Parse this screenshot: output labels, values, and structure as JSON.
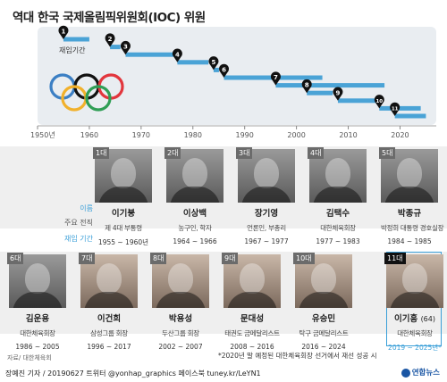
{
  "title": "역대 한국 국제올림픽위원회(IOC) 위원",
  "chart_data": {
    "type": "timeline",
    "x_ticks": [
      "1950년",
      "1960",
      "1970",
      "1980",
      "1990",
      "2000",
      "2010",
      "2020"
    ],
    "annotation": "재임기간",
    "bars": [
      {
        "marker": "1",
        "start": 1955,
        "end": 1960
      },
      {
        "marker": "2",
        "start": 1964,
        "end": 1966
      },
      {
        "marker": "3",
        "start": 1967,
        "end": 1977
      },
      {
        "marker": "4",
        "start": 1977,
        "end": 1983
      },
      {
        "marker": "5",
        "start": 1984,
        "end": 1985
      },
      {
        "marker": "6",
        "start": 1986,
        "end": 2005
      },
      {
        "marker": "7",
        "start": 1996,
        "end": 2017
      },
      {
        "marker": "8",
        "start": 2002,
        "end": 2007
      },
      {
        "marker": "9",
        "start": 2008,
        "end": 2016
      },
      {
        "marker": "10",
        "start": 2016,
        "end": 2024
      },
      {
        "marker": "11",
        "start": 2019,
        "end": 2025
      }
    ]
  },
  "row_labels": {
    "name": "이름",
    "role": "주요 전직",
    "term": "재임 기간"
  },
  "members": [
    {
      "order": "1대",
      "name": "이기붕",
      "age": "",
      "role": "제 4대 부통령",
      "term": "1955 ~ 1960년"
    },
    {
      "order": "2대",
      "name": "이상백",
      "age": "",
      "role": "농구인, 학자",
      "term": "1964 ~ 1966"
    },
    {
      "order": "3대",
      "name": "장기영",
      "age": "",
      "role": "언론인, 부총리",
      "term": "1967 ~ 1977"
    },
    {
      "order": "4대",
      "name": "김택수",
      "age": "",
      "role": "대한체육회장",
      "term": "1977 ~ 1983"
    },
    {
      "order": "5대",
      "name": "박종규",
      "age": "",
      "role": "박정희 대통령 경호실장",
      "term": "1984 ~ 1985"
    },
    {
      "order": "6대",
      "name": "김운용",
      "age": "",
      "role": "대한체육회장",
      "term": "1986 ~ 2005"
    },
    {
      "order": "7대",
      "name": "이건희",
      "age": "",
      "role": "삼성그룹 회장",
      "term": "1996 ~ 2017"
    },
    {
      "order": "8대",
      "name": "박용성",
      "age": "",
      "role": "두산그룹 회장",
      "term": "2002 ~ 2007"
    },
    {
      "order": "9대",
      "name": "문대성",
      "age": "",
      "role": "태권도 금메달리스트",
      "term": "2008 ~ 2016"
    },
    {
      "order": "10대",
      "name": "유승민",
      "age": "",
      "role": "탁구 금메달리스트",
      "term": "2016 ~ 2024"
    },
    {
      "order": "11대",
      "name": "이기흥",
      "age": "(64)",
      "role": "대한체육회장",
      "term": "2019 ~ 2025년*"
    }
  ],
  "footnote": "*2020년 말 예정된 대한체육회장 선거에서 재선 성공 시",
  "source": "자료/ 대한체육회",
  "credit": "장예진 기자 / 20190627 트위터 @yonhap_graphics 페이스북 tuney.kr/LeYN1",
  "logo": "연합뉴스",
  "colors": {
    "bar": "#4aa3d6",
    "accent": "#3a9fd8",
    "marker": "#111111"
  }
}
